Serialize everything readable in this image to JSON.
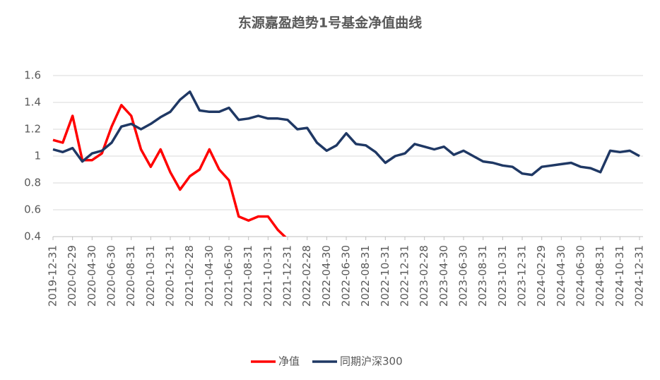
{
  "chart_data": {
    "type": "line",
    "title": "东源嘉盈趋势1号基金净值曲线",
    "categories": [
      "2019-12-31",
      null,
      "2020-02-29",
      null,
      "2020-04-30",
      null,
      "2020-06-30",
      null,
      "2020-08-31",
      null,
      "2020-10-31",
      null,
      "2020-12-31",
      null,
      "2021-02-28",
      null,
      "2021-04-30",
      null,
      "2021-06-30",
      null,
      "2021-08-31",
      null,
      "2021-10-31",
      null,
      "2021-12-31",
      null,
      "2022-02-28",
      null,
      "2022-04-30",
      null,
      "2022-06-30",
      null,
      "2022-08-31",
      null,
      "2022-10-31",
      null,
      "2022-12-31",
      null,
      "2023-02-28",
      null,
      "2023-04-30",
      null,
      "2023-06-30",
      null,
      "2023-08-31",
      null,
      "2023-10-31",
      null,
      "2023-12-31",
      null,
      "2024-02-29",
      null,
      "2024-04-30",
      null,
      "2024-06-30",
      null,
      "2024-08-31",
      null,
      "2024-10-31",
      null,
      "2024-12-31"
    ],
    "series": [
      {
        "name": "净值",
        "color": "#ff0000",
        "values": [
          1.12,
          1.1,
          1.3,
          0.97,
          0.97,
          1.02,
          1.22,
          1.38,
          1.3,
          1.05,
          0.92,
          1.05,
          0.88,
          0.75,
          0.85,
          0.9,
          1.05,
          0.9,
          0.82,
          0.55,
          0.52,
          0.55,
          0.55,
          0.45,
          0.38,
          null,
          null,
          null,
          null,
          null,
          null,
          null,
          null,
          null,
          null,
          null,
          null,
          null,
          null,
          null,
          null,
          null,
          null,
          null,
          null,
          null,
          null,
          null,
          null,
          null,
          null,
          null,
          null,
          null,
          null,
          null,
          null,
          null,
          null,
          null,
          null
        ]
      },
      {
        "name": "同期沪深300",
        "color": "#1f3864",
        "values": [
          1.05,
          1.03,
          1.06,
          0.96,
          1.02,
          1.04,
          1.1,
          1.22,
          1.24,
          1.2,
          1.24,
          1.29,
          1.33,
          1.42,
          1.48,
          1.34,
          1.33,
          1.33,
          1.36,
          1.27,
          1.28,
          1.3,
          1.28,
          1.28,
          1.27,
          1.2,
          1.21,
          1.1,
          1.04,
          1.08,
          1.17,
          1.09,
          1.08,
          1.03,
          0.95,
          1.0,
          1.02,
          1.09,
          1.07,
          1.05,
          1.07,
          1.01,
          1.04,
          1.0,
          0.96,
          0.95,
          0.93,
          0.92,
          0.87,
          0.86,
          0.92,
          0.93,
          0.94,
          0.95,
          0.92,
          0.91,
          0.88,
          1.04,
          1.03,
          1.04,
          1.0
        ]
      }
    ],
    "ylim": [
      0.4,
      1.6
    ],
    "yticks": [
      0.4,
      0.6,
      0.8,
      1,
      1.2,
      1.4,
      1.6
    ],
    "grid": true
  }
}
